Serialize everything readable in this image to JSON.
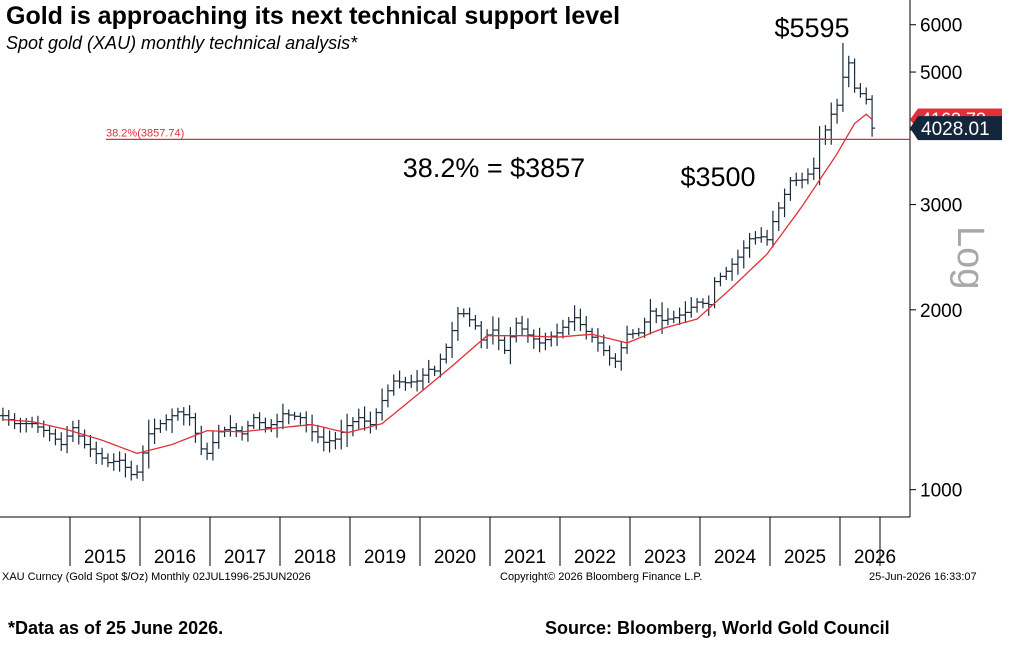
{
  "header": {
    "title": "Gold is approaching its next technical support level",
    "subtitle": "Spot gold (XAU) monthly technical analysis*"
  },
  "footer": {
    "note": "*Data as of 25 June 2026.",
    "source": "Source: Bloomberg, World Gold Council"
  },
  "terminal": {
    "security": "XAU Curncy (Gold Spot  $/Oz) Monthly 02JUL1996-25JUN2026",
    "copyright": "Copyright© 2026 Bloomberg Finance L.P.",
    "timestamp": "25-Jun-2026 16:33:07"
  },
  "colors": {
    "price_bars": "#1b2a3a",
    "moving_average": "#e0303a",
    "fib_line": "#d8303a",
    "last_price_box": "#14263c",
    "ma_price_box": "#e0303a"
  },
  "chart_data": {
    "type": "ohlc",
    "yscale": "log",
    "ylabel": "Log",
    "ylim": [
      900,
      6600
    ],
    "yticks": [
      1000,
      2000,
      3000,
      4000,
      5000,
      6000
    ],
    "xlim": [
      "2014-01",
      "2026-12"
    ],
    "xticks": [
      "2015",
      "2016",
      "2017",
      "2018",
      "2019",
      "2020",
      "2021",
      "2022",
      "2023",
      "2024",
      "2025",
      "2026"
    ],
    "fib_level": {
      "label": "38.2%(3857.74)",
      "value": 3857.74
    },
    "last_price": {
      "label": "4028.01",
      "value": 4028.01
    },
    "ma_price": {
      "label": "4163.73",
      "value": 4163.73
    },
    "annotations": [
      {
        "text": "$5595",
        "value": 5595
      },
      {
        "text": "$3500",
        "value": 3500
      },
      {
        "text": "38.2% = $3857",
        "value": 3857
      }
    ],
    "price_anchors": [
      [
        "2014-01",
        1330
      ],
      [
        "2014-03",
        1290
      ],
      [
        "2014-06",
        1290
      ],
      [
        "2014-09",
        1240
      ],
      [
        "2014-11",
        1190
      ],
      [
        "2015-01",
        1270
      ],
      [
        "2015-03",
        1190
      ],
      [
        "2015-07",
        1110
      ],
      [
        "2015-09",
        1120
      ],
      [
        "2015-11",
        1060
      ],
      [
        "2015-12",
        1070
      ],
      [
        "2016-02",
        1240
      ],
      [
        "2016-04",
        1290
      ],
      [
        "2016-07",
        1350
      ],
      [
        "2016-09",
        1320
      ],
      [
        "2016-11",
        1170
      ],
      [
        "2016-12",
        1150
      ],
      [
        "2017-02",
        1250
      ],
      [
        "2017-04",
        1270
      ],
      [
        "2017-06",
        1240
      ],
      [
        "2017-08",
        1320
      ],
      [
        "2017-10",
        1270
      ],
      [
        "2017-12",
        1300
      ],
      [
        "2018-01",
        1340
      ],
      [
        "2018-04",
        1320
      ],
      [
        "2018-06",
        1250
      ],
      [
        "2018-08",
        1200
      ],
      [
        "2018-10",
        1215
      ],
      [
        "2018-12",
        1280
      ],
      [
        "2019-02",
        1320
      ],
      [
        "2019-04",
        1285
      ],
      [
        "2019-06",
        1410
      ],
      [
        "2019-08",
        1520
      ],
      [
        "2019-10",
        1510
      ],
      [
        "2019-12",
        1520
      ],
      [
        "2020-02",
        1590
      ],
      [
        "2020-03",
        1580
      ],
      [
        "2020-05",
        1730
      ],
      [
        "2020-07",
        1970
      ],
      [
        "2020-08",
        1970
      ],
      [
        "2020-10",
        1880
      ],
      [
        "2020-11",
        1780
      ],
      [
        "2021-01",
        1850
      ],
      [
        "2021-03",
        1710
      ],
      [
        "2021-05",
        1900
      ],
      [
        "2021-07",
        1815
      ],
      [
        "2021-09",
        1760
      ],
      [
        "2021-12",
        1830
      ],
      [
        "2022-02",
        1910
      ],
      [
        "2022-03",
        1940
      ],
      [
        "2022-05",
        1840
      ],
      [
        "2022-07",
        1760
      ],
      [
        "2022-09",
        1660
      ],
      [
        "2022-10",
        1640
      ],
      [
        "2022-12",
        1820
      ],
      [
        "2023-02",
        1830
      ],
      [
        "2023-04",
        1990
      ],
      [
        "2023-06",
        1920
      ],
      [
        "2023-08",
        1940
      ],
      [
        "2023-10",
        1980
      ],
      [
        "2023-12",
        2060
      ],
      [
        "2024-02",
        2040
      ],
      [
        "2024-03",
        2230
      ],
      [
        "2024-05",
        2320
      ],
      [
        "2024-07",
        2450
      ],
      [
        "2024-09",
        2630
      ],
      [
        "2024-11",
        2650
      ],
      [
        "2024-12",
        2620
      ],
      [
        "2025-01",
        2810
      ],
      [
        "2025-03",
        3120
      ],
      [
        "2025-04",
        3290
      ],
      [
        "2025-06",
        3300
      ],
      [
        "2025-08",
        3450
      ],
      [
        "2025-09",
        3860
      ],
      [
        "2025-10",
        4000
      ],
      [
        "2025-11",
        4250
      ],
      [
        "2025-12",
        4400
      ],
      [
        "2026-01",
        4900
      ],
      [
        "2026-02",
        5180
      ],
      [
        "2026-03",
        4700
      ],
      [
        "2026-04",
        4600
      ],
      [
        "2026-05",
        4500
      ],
      [
        "2026-06",
        4028
      ]
    ],
    "moving_average": [
      [
        "2014-01",
        1310
      ],
      [
        "2014-06",
        1300
      ],
      [
        "2014-12",
        1260
      ],
      [
        "2015-06",
        1210
      ],
      [
        "2015-12",
        1150
      ],
      [
        "2016-06",
        1190
      ],
      [
        "2016-12",
        1255
      ],
      [
        "2017-06",
        1250
      ],
      [
        "2017-12",
        1268
      ],
      [
        "2018-06",
        1285
      ],
      [
        "2018-12",
        1245
      ],
      [
        "2019-06",
        1290
      ],
      [
        "2019-12",
        1440
      ],
      [
        "2020-06",
        1610
      ],
      [
        "2020-12",
        1810
      ],
      [
        "2021-06",
        1810
      ],
      [
        "2021-12",
        1800
      ],
      [
        "2022-06",
        1820
      ],
      [
        "2022-12",
        1760
      ],
      [
        "2023-06",
        1860
      ],
      [
        "2023-12",
        1930
      ],
      [
        "2024-06",
        2180
      ],
      [
        "2024-12",
        2480
      ],
      [
        "2025-06",
        2980
      ],
      [
        "2025-12",
        3650
      ],
      [
        "2026-03",
        4100
      ],
      [
        "2026-05",
        4250
      ],
      [
        "2026-06",
        4163.73
      ]
    ]
  }
}
